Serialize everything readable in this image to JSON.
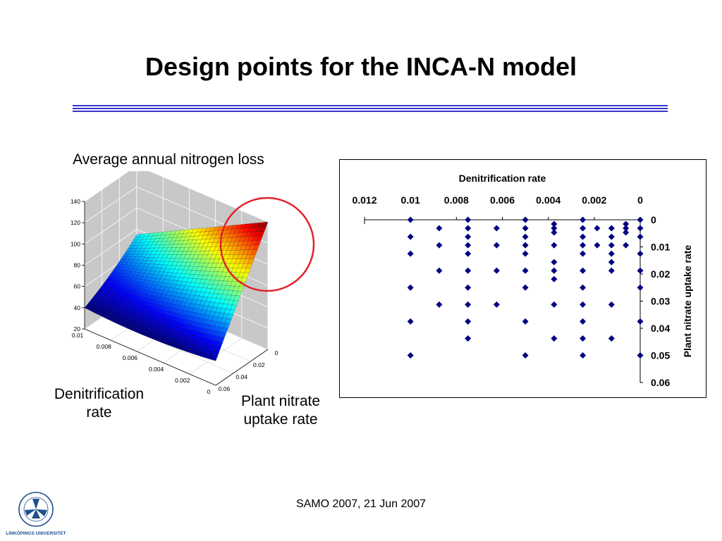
{
  "slide": {
    "title": "Design points for the INCA-N model",
    "footer": "SAMO 2007, 21 Jun 2007",
    "logo_text": "LINKÖPINGS UNIVERSITET"
  },
  "labels": {
    "surface_title": "Average annual nitrogen loss",
    "denitrification": "Denitrification rate",
    "plant_uptake": "Plant nitrate uptake rate"
  },
  "colors": {
    "rule": "#3333cc",
    "marker": "#000080",
    "highlight_circle": "#e0202a",
    "axes_panel": "#c8c8c8"
  },
  "chart_data": [
    {
      "type": "surface",
      "title": "",
      "z_ticks": [
        20,
        40,
        60,
        80,
        100,
        120,
        140
      ],
      "z_range": [
        20,
        140
      ],
      "x_ticks": [
        0.01,
        0.008,
        0.006,
        0.004,
        0.002,
        0
      ],
      "x_label": "Denitrification rate",
      "y_ticks": [
        0,
        0.02,
        0.04,
        0.06
      ],
      "y_label": "Plant nitrate uptake rate",
      "corner_values": {
        "denit_0.01_uptake_0.06": 40,
        "denit_0_uptake_0.06": 43,
        "denit_0.01_uptake_0": 75,
        "denit_0_uptake_0": 140
      },
      "colormap": "jet",
      "highlight": "circle around maximum near denitrification rate 0, uptake rate 0"
    },
    {
      "type": "scatter",
      "title": "Denitrification rate",
      "xlabel": "Denitrification rate",
      "ylabel": "Plant nitrate uptake rate",
      "x_axis_position": "top",
      "x_reversed": true,
      "y_axis_position": "right",
      "y_reversed": true,
      "x_ticks": [
        "0.012",
        "0.01",
        "0.008",
        "0.006",
        "0.004",
        "0.002",
        "0"
      ],
      "y_ticks": [
        "0",
        "0.01",
        "0.02",
        "0.03",
        "0.04",
        "0.05",
        "0.06"
      ],
      "xlim": [
        0.012,
        0
      ],
      "ylim": [
        0,
        0.06
      ],
      "grid": false,
      "series": [
        {
          "marker": "diamond",
          "points": [
            [
              0.01,
              0
            ],
            [
              0.01,
              0.00625
            ],
            [
              0.01,
              0.0125
            ],
            [
              0.01,
              0.025
            ],
            [
              0.01,
              0.0375
            ],
            [
              0.01,
              0.05
            ],
            [
              0.00875,
              0.003125
            ],
            [
              0.00875,
              0.009375
            ],
            [
              0.00875,
              0.01875
            ],
            [
              0.00875,
              0.03125
            ],
            [
              0.0075,
              0
            ],
            [
              0.0075,
              0.003125
            ],
            [
              0.0075,
              0.00625
            ],
            [
              0.0075,
              0.009375
            ],
            [
              0.0075,
              0.0125
            ],
            [
              0.0075,
              0.01875
            ],
            [
              0.0075,
              0.025
            ],
            [
              0.0075,
              0.03125
            ],
            [
              0.0075,
              0.0375
            ],
            [
              0.0075,
              0.04375
            ],
            [
              0.00625,
              0.003125
            ],
            [
              0.00625,
              0.009375
            ],
            [
              0.00625,
              0.01875
            ],
            [
              0.00625,
              0.03125
            ],
            [
              0.005,
              0
            ],
            [
              0.005,
              0.003125
            ],
            [
              0.005,
              0.00625
            ],
            [
              0.005,
              0.009375
            ],
            [
              0.005,
              0.0125
            ],
            [
              0.005,
              0.01875
            ],
            [
              0.005,
              0.025
            ],
            [
              0.005,
              0.0375
            ],
            [
              0.005,
              0.05
            ],
            [
              0.00375,
              0.0015625
            ],
            [
              0.00375,
              0.003125
            ],
            [
              0.00375,
              0.0046875
            ],
            [
              0.00375,
              0.009375
            ],
            [
              0.00375,
              0.015625
            ],
            [
              0.00375,
              0.01875
            ],
            [
              0.00375,
              0.021875
            ],
            [
              0.00375,
              0.03125
            ],
            [
              0.00375,
              0.04375
            ],
            [
              0.0025,
              0
            ],
            [
              0.0025,
              0.003125
            ],
            [
              0.0025,
              0.00625
            ],
            [
              0.0025,
              0.009375
            ],
            [
              0.0025,
              0.0125
            ],
            [
              0.0025,
              0.01875
            ],
            [
              0.0025,
              0.025
            ],
            [
              0.0025,
              0.03125
            ],
            [
              0.0025,
              0.0375
            ],
            [
              0.0025,
              0.04375
            ],
            [
              0.0025,
              0.05
            ],
            [
              0.001875,
              0.003125
            ],
            [
              0.001875,
              0.009375
            ],
            [
              0.00125,
              0.003125
            ],
            [
              0.00125,
              0.00625
            ],
            [
              0.00125,
              0.009375
            ],
            [
              0.00125,
              0.0125
            ],
            [
              0.00125,
              0.015625
            ],
            [
              0.00125,
              0.01875
            ],
            [
              0.00125,
              0.03125
            ],
            [
              0.00125,
              0.04375
            ],
            [
              0.000625,
              0.0015625
            ],
            [
              0.000625,
              0.003125
            ],
            [
              0.000625,
              0.0046875
            ],
            [
              0.000625,
              0.009375
            ],
            [
              0,
              0
            ],
            [
              0,
              0.003125
            ],
            [
              0,
              0.00625
            ],
            [
              0,
              0.0125
            ],
            [
              0,
              0.01875
            ],
            [
              0,
              0.025
            ],
            [
              0,
              0.0375
            ],
            [
              0,
              0.05
            ]
          ]
        }
      ]
    }
  ]
}
